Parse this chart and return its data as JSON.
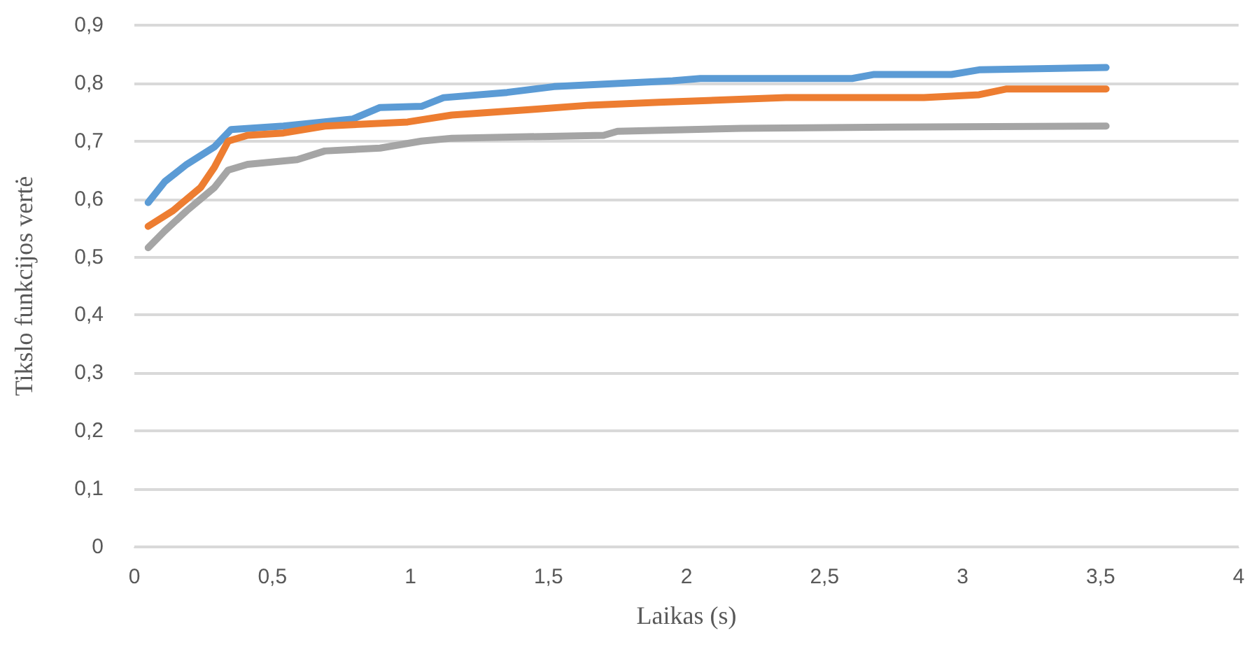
{
  "chart_data": {
    "type": "line",
    "xlabel": "Laikas (s)",
    "ylabel": "Tikslo funkcijos vertė",
    "xlim": [
      0,
      4
    ],
    "xticks": [
      0,
      {
        "value": 0.5,
        "label": "0,5"
      },
      1,
      {
        "value": 1.5,
        "label": "1,5"
      },
      2,
      {
        "value": 2.5,
        "label": "2,5"
      },
      3,
      {
        "value": 3.5,
        "label": "3,5"
      },
      4
    ],
    "ylim": [
      0,
      0.9
    ],
    "yticks": [
      0,
      {
        "value": 0.1,
        "label": "0,1"
      },
      {
        "value": 0.2,
        "label": "0,2"
      },
      {
        "value": 0.3,
        "label": "0,3"
      },
      {
        "value": 0.4,
        "label": "0,4"
      },
      {
        "value": 0.5,
        "label": "0,5"
      },
      {
        "value": 0.6,
        "label": "0,6"
      },
      {
        "value": 0.7,
        "label": "0,7"
      },
      {
        "value": 0.8,
        "label": "0,8"
      },
      {
        "value": 0.9,
        "label": "0,9"
      }
    ],
    "grid": "y",
    "marker": "none",
    "line_style": "solid",
    "series": [
      {
        "color": "#5b9bd5",
        "x": [
          0.05,
          0.11,
          0.19,
          0.29,
          0.35,
          0.54,
          0.79,
          0.89,
          1.04,
          1.12,
          1.35,
          1.52,
          1.95,
          2.05,
          2.6,
          2.68,
          2.96,
          3.06,
          3.52
        ],
        "values": [
          0.594,
          0.63,
          0.66,
          0.69,
          0.72,
          0.726,
          0.738,
          0.758,
          0.76,
          0.775,
          0.784,
          0.794,
          0.804,
          0.808,
          0.808,
          0.815,
          0.815,
          0.823,
          0.827
        ]
      },
      {
        "color": "#ed7d31",
        "x": [
          0.05,
          0.14,
          0.24,
          0.29,
          0.34,
          0.41,
          0.54,
          0.69,
          0.99,
          1.15,
          1.45,
          1.65,
          1.9,
          2.36,
          2.86,
          3.06,
          3.16,
          3.52
        ],
        "values": [
          0.553,
          0.58,
          0.62,
          0.655,
          0.7,
          0.71,
          0.714,
          0.726,
          0.733,
          0.745,
          0.755,
          0.762,
          0.767,
          0.775,
          0.775,
          0.78,
          0.79,
          0.79
        ]
      },
      {
        "color": "#a5a5a5",
        "x": [
          0.05,
          0.11,
          0.19,
          0.29,
          0.34,
          0.41,
          0.59,
          0.69,
          0.89,
          1.04,
          1.15,
          1.7,
          1.75,
          2.2,
          2.66,
          3.52
        ],
        "values": [
          0.516,
          0.545,
          0.58,
          0.62,
          0.65,
          0.66,
          0.668,
          0.683,
          0.688,
          0.7,
          0.705,
          0.71,
          0.717,
          0.722,
          0.724,
          0.726
        ]
      }
    ]
  }
}
